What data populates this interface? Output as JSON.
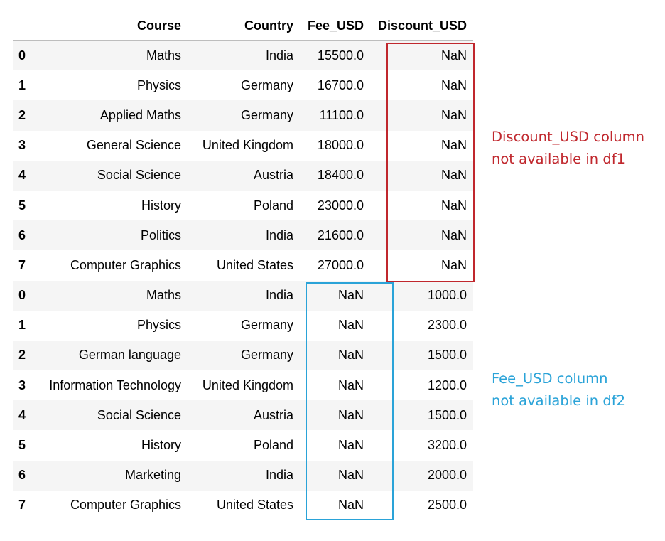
{
  "table": {
    "columns": [
      "Course",
      "Country",
      "Fee_USD",
      "Discount_USD"
    ],
    "rows": [
      {
        "index": "0",
        "course": "Maths",
        "country": "India",
        "fee": "15500.0",
        "discount": "NaN"
      },
      {
        "index": "1",
        "course": "Physics",
        "country": "Germany",
        "fee": "16700.0",
        "discount": "NaN"
      },
      {
        "index": "2",
        "course": "Applied Maths",
        "country": "Germany",
        "fee": "11100.0",
        "discount": "NaN"
      },
      {
        "index": "3",
        "course": "General Science",
        "country": "United Kingdom",
        "fee": "18000.0",
        "discount": "NaN"
      },
      {
        "index": "4",
        "course": "Social Science",
        "country": "Austria",
        "fee": "18400.0",
        "discount": "NaN"
      },
      {
        "index": "5",
        "course": "History",
        "country": "Poland",
        "fee": "23000.0",
        "discount": "NaN"
      },
      {
        "index": "6",
        "course": "Politics",
        "country": "India",
        "fee": "21600.0",
        "discount": "NaN"
      },
      {
        "index": "7",
        "course": "Computer Graphics",
        "country": "United States",
        "fee": "27000.0",
        "discount": "NaN"
      },
      {
        "index": "0",
        "course": "Maths",
        "country": "India",
        "fee": "NaN",
        "discount": "1000.0"
      },
      {
        "index": "1",
        "course": "Physics",
        "country": "Germany",
        "fee": "NaN",
        "discount": "2300.0"
      },
      {
        "index": "2",
        "course": "German language",
        "country": "Germany",
        "fee": "NaN",
        "discount": "1500.0"
      },
      {
        "index": "3",
        "course": "Information Technology",
        "country": "United Kingdom",
        "fee": "NaN",
        "discount": "1200.0"
      },
      {
        "index": "4",
        "course": "Social Science",
        "country": "Austria",
        "fee": "NaN",
        "discount": "1500.0"
      },
      {
        "index": "5",
        "course": "History",
        "country": "Poland",
        "fee": "NaN",
        "discount": "3200.0"
      },
      {
        "index": "6",
        "course": "Marketing",
        "country": "India",
        "fee": "NaN",
        "discount": "2000.0"
      },
      {
        "index": "7",
        "course": "Computer Graphics",
        "country": "United States",
        "fee": "NaN",
        "discount": "2500.0"
      }
    ]
  },
  "annotations": {
    "df1": {
      "lines": [
        "Discount_USD column",
        "not available in df1"
      ],
      "color": "#c0272d"
    },
    "df2": {
      "lines": [
        "Fee_USD column",
        "not available in df2"
      ],
      "color": "#2aa3d8"
    }
  }
}
